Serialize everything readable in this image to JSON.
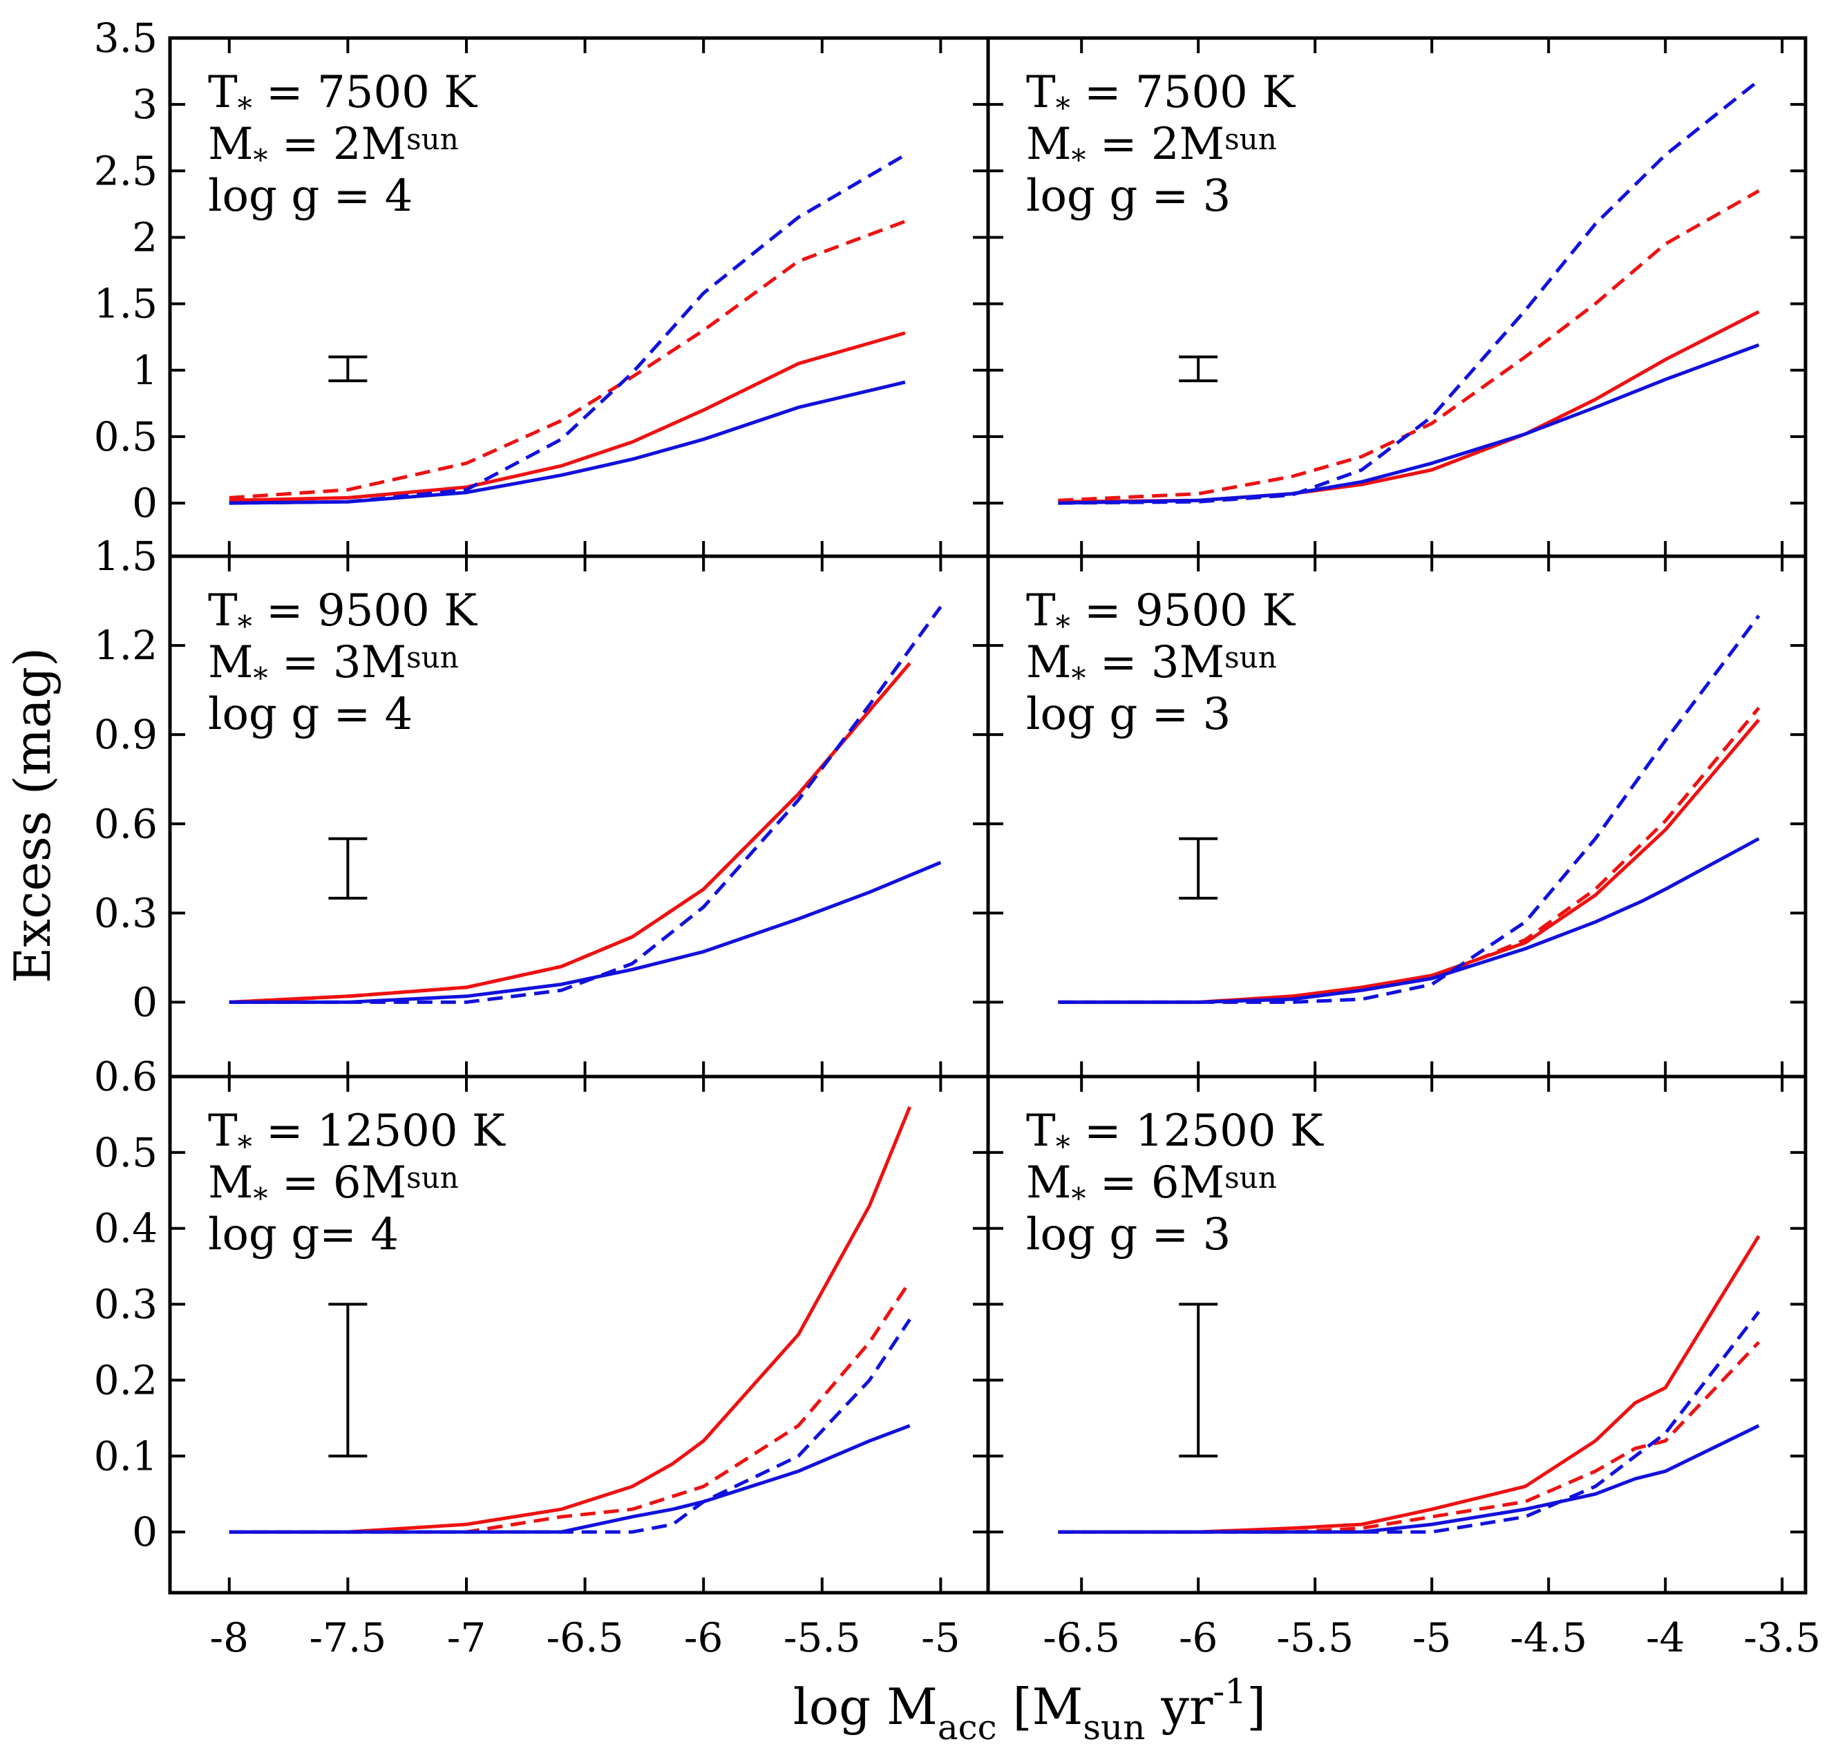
{
  "colors": {
    "red": "#ee1111",
    "blue": "#1111dd",
    "frame": "#000000"
  },
  "axes": {
    "xlabel": {
      "main": "log M",
      "sub1": "acc",
      "bracket_open": " [M",
      "sub2": "sun",
      "mid": " yr",
      "sup": "-1",
      "bracket_close": "]"
    },
    "ylabel": "Excess (mag)"
  },
  "chart_data": [
    {
      "type": "line",
      "panel": "top-left",
      "annotation": {
        "line1": "T",
        "line1_sub": "*",
        "line1_rest": " = 7500 K",
        "line2": "M",
        "line2_sub": "*",
        "line2_rest": " = 2M",
        "line2_sub2": "sun",
        "line3": "log g = 4"
      },
      "xlim": [
        -8.25,
        -4.8
      ],
      "ylim": [
        -0.4,
        3.5
      ],
      "x_ticks": [
        "-8",
        "-7.5",
        "-7",
        "-6.5",
        "-6",
        "-5.5",
        "-5"
      ],
      "y_ticks": [
        "0",
        "0.5",
        "1",
        "1.5",
        "2",
        "2.5",
        "3",
        "3.5"
      ],
      "y_tick_values": [
        0,
        0.5,
        1,
        1.5,
        2,
        2.5,
        3,
        3.5
      ],
      "errorbar": {
        "x": -7.5,
        "low": 0.92,
        "high": 1.1
      },
      "series": [
        {
          "color": "red",
          "style": "solid",
          "x": [
            -8,
            -7.5,
            -7,
            -6.6,
            -6.3,
            -6.0,
            -5.6,
            -5.15
          ],
          "y": [
            0.02,
            0.04,
            0.12,
            0.28,
            0.46,
            0.7,
            1.05,
            1.28
          ]
        },
        {
          "color": "red",
          "style": "dashed",
          "x": [
            -8,
            -7.5,
            -7,
            -6.6,
            -6.3,
            -6.0,
            -5.6,
            -5.15
          ],
          "y": [
            0.04,
            0.1,
            0.3,
            0.62,
            0.95,
            1.3,
            1.82,
            2.12
          ]
        },
        {
          "color": "blue",
          "style": "solid",
          "x": [
            -8,
            -7.5,
            -7,
            -6.6,
            -6.3,
            -6.0,
            -5.6,
            -5.15
          ],
          "y": [
            0.0,
            0.01,
            0.08,
            0.21,
            0.33,
            0.48,
            0.72,
            0.91
          ]
        },
        {
          "color": "blue",
          "style": "dashed",
          "x": [
            -8,
            -7.5,
            -7,
            -6.6,
            -6.3,
            -6.0,
            -5.6,
            -5.15
          ],
          "y": [
            0.0,
            0.01,
            0.1,
            0.48,
            0.98,
            1.58,
            2.15,
            2.62
          ]
        }
      ]
    },
    {
      "type": "line",
      "panel": "top-right",
      "annotation": {
        "line1": "T",
        "line1_sub": "*",
        "line1_rest": " = 7500 K",
        "line2": "M",
        "line2_sub": "*",
        "line2_rest": " = 2M",
        "line2_sub2": "sun",
        "line3": "log g = 3"
      },
      "xlim": [
        -6.9,
        -3.4
      ],
      "ylim": [
        -0.4,
        3.5
      ],
      "x_ticks": [
        "-6.5",
        "-6",
        "-5.5",
        "-5",
        "-4.5",
        "-4",
        "-3.5"
      ],
      "y_ticks": [],
      "y_tick_values": [
        0,
        0.5,
        1,
        1.5,
        2,
        2.5,
        3,
        3.5
      ],
      "errorbar": {
        "x": -6.0,
        "low": 0.92,
        "high": 1.1
      },
      "series": [
        {
          "color": "red",
          "style": "solid",
          "x": [
            -6.6,
            -6.0,
            -5.6,
            -5.3,
            -5.0,
            -4.6,
            -4.3,
            -4.0,
            -3.6
          ],
          "y": [
            0.01,
            0.02,
            0.07,
            0.14,
            0.25,
            0.52,
            0.78,
            1.08,
            1.44
          ]
        },
        {
          "color": "red",
          "style": "dashed",
          "x": [
            -6.6,
            -6.0,
            -5.6,
            -5.3,
            -5.0,
            -4.6,
            -4.3,
            -4.0,
            -3.6
          ],
          "y": [
            0.02,
            0.07,
            0.2,
            0.35,
            0.6,
            1.1,
            1.5,
            1.95,
            2.35
          ]
        },
        {
          "color": "blue",
          "style": "solid",
          "x": [
            -6.6,
            -6.0,
            -5.6,
            -5.3,
            -5.0,
            -4.6,
            -4.3,
            -4.0,
            -3.6
          ],
          "y": [
            0.0,
            0.02,
            0.07,
            0.16,
            0.3,
            0.52,
            0.72,
            0.93,
            1.19
          ]
        },
        {
          "color": "blue",
          "style": "dashed",
          "x": [
            -6.6,
            -6.0,
            -5.6,
            -5.3,
            -5.0,
            -4.6,
            -4.3,
            -4.0,
            -3.6
          ],
          "y": [
            0.0,
            0.01,
            0.06,
            0.25,
            0.65,
            1.45,
            2.1,
            2.62,
            3.18
          ]
        }
      ]
    },
    {
      "type": "line",
      "panel": "middle-left",
      "annotation": {
        "line1": "T",
        "line1_sub": "*",
        "line1_rest": " = 9500 K",
        "line2": "M",
        "line2_sub": "*",
        "line2_rest": " = 3M",
        "line2_sub2": "sun",
        "line3": "log g = 4"
      },
      "xlim": [
        -8.25,
        -4.8
      ],
      "ylim": [
        -0.25,
        1.5
      ],
      "x_ticks": [
        "-8",
        "-7.5",
        "-7",
        "-6.5",
        "-6",
        "-5.5",
        "-5"
      ],
      "y_ticks": [
        "0",
        "0.3",
        "0.6",
        "0.9",
        "1.2",
        "1.5"
      ],
      "y_tick_values": [
        0,
        0.3,
        0.6,
        0.9,
        1.2,
        1.5
      ],
      "errorbar": {
        "x": -7.5,
        "low": 0.35,
        "high": 0.55
      },
      "series": [
        {
          "color": "red",
          "style": "solid",
          "x": [
            -8,
            -7.5,
            -7,
            -6.6,
            -6.3,
            -6.0,
            -5.6,
            -5.13
          ],
          "y": [
            0.0,
            0.02,
            0.05,
            0.12,
            0.22,
            0.38,
            0.7,
            1.14
          ]
        },
        {
          "color": "red",
          "style": "dashed",
          "x": [
            -8,
            -7.5,
            -7,
            -6.6,
            -6.3,
            -6.0,
            -5.6,
            -5.13
          ],
          "y": [
            0.0,
            0.02,
            0.05,
            0.12,
            0.22,
            0.38,
            0.7,
            1.14
          ]
        },
        {
          "color": "blue",
          "style": "solid",
          "x": [
            -8,
            -7.5,
            -7,
            -6.6,
            -6.3,
            -6.0,
            -5.6,
            -5.3,
            -5.0
          ],
          "y": [
            0.0,
            0.0,
            0.02,
            0.06,
            0.11,
            0.17,
            0.28,
            0.37,
            0.47
          ]
        },
        {
          "color": "blue",
          "style": "dashed",
          "x": [
            -8,
            -7.5,
            -7,
            -6.6,
            -6.3,
            -6.0,
            -5.6,
            -5.3,
            -5.0
          ],
          "y": [
            0.0,
            0.0,
            0.0,
            0.04,
            0.13,
            0.32,
            0.68,
            1.0,
            1.33
          ]
        }
      ]
    },
    {
      "type": "line",
      "panel": "middle-right",
      "annotation": {
        "line1": "T",
        "line1_sub": "*",
        "line1_rest": " = 9500 K",
        "line2": "M",
        "line2_sub": "*",
        "line2_rest": " = 3M",
        "line2_sub2": "sun",
        "line3": "log g = 3"
      },
      "xlim": [
        -6.9,
        -3.4
      ],
      "ylim": [
        -0.25,
        1.5
      ],
      "x_ticks": [
        "-6.5",
        "-6",
        "-5.5",
        "-5",
        "-4.5",
        "-4",
        "-3.5"
      ],
      "y_ticks": [],
      "y_tick_values": [
        0,
        0.3,
        0.6,
        0.9,
        1.2,
        1.5
      ],
      "errorbar": {
        "x": -6.0,
        "low": 0.35,
        "high": 0.55
      },
      "series": [
        {
          "color": "red",
          "style": "solid",
          "x": [
            -6.6,
            -6.0,
            -5.6,
            -5.3,
            -5.0,
            -4.6,
            -4.3,
            -4.0,
            -3.6
          ],
          "y": [
            0.0,
            0.0,
            0.02,
            0.05,
            0.09,
            0.2,
            0.36,
            0.58,
            0.95
          ]
        },
        {
          "color": "red",
          "style": "dashed",
          "x": [
            -6.6,
            -6.0,
            -5.6,
            -5.3,
            -5.0,
            -4.6,
            -4.3,
            -4.0,
            -3.6
          ],
          "y": [
            0.0,
            0.0,
            0.01,
            0.04,
            0.08,
            0.21,
            0.38,
            0.61,
            0.99
          ]
        },
        {
          "color": "blue",
          "style": "solid",
          "x": [
            -6.6,
            -6.0,
            -5.6,
            -5.3,
            -5.0,
            -4.6,
            -4.3,
            -4.1,
            -4.0,
            -3.6
          ],
          "y": [
            0.0,
            0.0,
            0.01,
            0.04,
            0.08,
            0.18,
            0.27,
            0.34,
            0.38,
            0.55
          ]
        },
        {
          "color": "blue",
          "style": "dashed",
          "x": [
            -6.6,
            -6.0,
            -5.6,
            -5.3,
            -5.0,
            -4.6,
            -4.3,
            -4.0,
            -3.6
          ],
          "y": [
            0.0,
            0.0,
            0.0,
            0.01,
            0.06,
            0.27,
            0.55,
            0.88,
            1.3
          ]
        }
      ]
    },
    {
      "type": "line",
      "panel": "bottom-left",
      "annotation": {
        "line1": "T",
        "line1_sub": "*",
        "line1_rest": " = 12500 K",
        "line2": "M",
        "line2_sub": "*",
        "line2_rest": " = 6M",
        "line2_sub2": "sun",
        "line3": "log g= 4"
      },
      "xlim": [
        -8.25,
        -4.8
      ],
      "ylim": [
        -0.08,
        0.6
      ],
      "x_ticks": [
        "-8",
        "-7.5",
        "-7",
        "-6.5",
        "-6",
        "-5.5",
        "-5"
      ],
      "y_ticks": [
        "0",
        "0.1",
        "0.2",
        "0.3",
        "0.4",
        "0.5",
        "0.6"
      ],
      "y_tick_values": [
        0,
        0.1,
        0.2,
        0.3,
        0.4,
        0.5,
        0.6
      ],
      "errorbar": {
        "x": -7.5,
        "low": 0.1,
        "high": 0.3
      },
      "series": [
        {
          "color": "red",
          "style": "solid",
          "x": [
            -8,
            -7.5,
            -7,
            -6.6,
            -6.3,
            -6.13,
            -6.0,
            -5.6,
            -5.3,
            -5.13
          ],
          "y": [
            0.0,
            0.0,
            0.01,
            0.03,
            0.06,
            0.09,
            0.12,
            0.26,
            0.43,
            0.56
          ]
        },
        {
          "color": "red",
          "style": "dashed",
          "x": [
            -8,
            -7.5,
            -7,
            -6.6,
            -6.3,
            -6.0,
            -5.6,
            -5.3,
            -5.13
          ],
          "y": [
            0.0,
            0.0,
            0.0,
            0.02,
            0.03,
            0.06,
            0.14,
            0.25,
            0.33
          ]
        },
        {
          "color": "blue",
          "style": "solid",
          "x": [
            -8,
            -7.5,
            -7,
            -6.6,
            -6.3,
            -6.13,
            -6.0,
            -5.6,
            -5.3,
            -5.13
          ],
          "y": [
            0.0,
            0.0,
            0.0,
            0.0,
            0.02,
            0.03,
            0.04,
            0.08,
            0.12,
            0.14
          ]
        },
        {
          "color": "blue",
          "style": "dashed",
          "x": [
            -8,
            -7.5,
            -7,
            -6.6,
            -6.3,
            -6.13,
            -6.0,
            -5.6,
            -5.3,
            -5.13
          ],
          "y": [
            0.0,
            0.0,
            0.0,
            0.0,
            0.0,
            0.01,
            0.04,
            0.1,
            0.2,
            0.28
          ]
        }
      ]
    },
    {
      "type": "line",
      "panel": "bottom-right",
      "annotation": {
        "line1": "T",
        "line1_sub": "*",
        "line1_rest": " = 12500 K",
        "line2": "M",
        "line2_sub": "*",
        "line2_rest": " = 6M",
        "line2_sub2": "sun",
        "line3": "log g = 3"
      },
      "xlim": [
        -6.9,
        -3.4
      ],
      "ylim": [
        -0.08,
        0.6
      ],
      "x_ticks": [
        "-6.5",
        "-6",
        "-5.5",
        "-5",
        "-4.5",
        "-4",
        "-3.5"
      ],
      "y_ticks": [],
      "y_tick_values": [
        0,
        0.1,
        0.2,
        0.3,
        0.4,
        0.5,
        0.6
      ],
      "errorbar": {
        "x": -6.0,
        "low": 0.1,
        "high": 0.3
      },
      "series": [
        {
          "color": "red",
          "style": "solid",
          "x": [
            -6.6,
            -6.0,
            -5.6,
            -5.3,
            -5.0,
            -4.6,
            -4.3,
            -4.13,
            -4.0,
            -3.6
          ],
          "y": [
            0.0,
            0.0,
            0.005,
            0.01,
            0.03,
            0.06,
            0.12,
            0.17,
            0.19,
            0.39
          ]
        },
        {
          "color": "red",
          "style": "dashed",
          "x": [
            -6.6,
            -6.0,
            -5.6,
            -5.3,
            -5.0,
            -4.6,
            -4.3,
            -4.13,
            -4.0,
            -3.6
          ],
          "y": [
            0.0,
            0.0,
            0.0,
            0.005,
            0.02,
            0.04,
            0.08,
            0.11,
            0.12,
            0.25
          ]
        },
        {
          "color": "blue",
          "style": "solid",
          "x": [
            -6.6,
            -6.0,
            -5.6,
            -5.3,
            -5.0,
            -4.6,
            -4.3,
            -4.13,
            -4.0,
            -3.6
          ],
          "y": [
            0.0,
            0.0,
            0.0,
            0.0,
            0.01,
            0.03,
            0.05,
            0.07,
            0.08,
            0.14
          ]
        },
        {
          "color": "blue",
          "style": "dashed",
          "x": [
            -6.6,
            -6.0,
            -5.6,
            -5.3,
            -5.0,
            -4.6,
            -4.3,
            -4.0,
            -3.6
          ],
          "y": [
            0.0,
            0.0,
            0.0,
            0.0,
            0.0,
            0.02,
            0.06,
            0.13,
            0.29
          ]
        }
      ]
    }
  ]
}
